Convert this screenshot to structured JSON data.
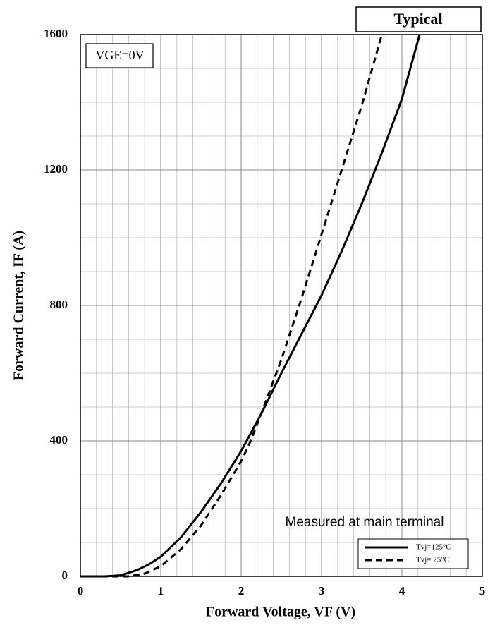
{
  "chart_data": {
    "type": "line",
    "title": "Typical",
    "x_label": "Forward Voltage, VF (V)",
    "y_label": "Forward Current, IF (A)",
    "annotations": [
      "VGE=0V",
      "Measured at main terminal"
    ],
    "xlim": [
      0,
      5
    ],
    "xticks": [
      0,
      1,
      2,
      3,
      4,
      5
    ],
    "ylim": [
      0,
      1600
    ],
    "yticks": [
      0,
      400,
      800,
      1200,
      1600
    ],
    "xminorticks": [
      0.2,
      0.4,
      0.6,
      0.8,
      1.2,
      1.4,
      1.6,
      1.8,
      2.2,
      2.4,
      2.6,
      2.8,
      3.2,
      3.4,
      3.6,
      3.8,
      4.2,
      4.4,
      4.6,
      4.8
    ],
    "yminorticks": [
      100,
      200,
      300,
      500,
      600,
      700,
      900,
      1000,
      1100,
      1300,
      1400,
      1500
    ],
    "grid": true,
    "legend": "lower right",
    "series": [
      {
        "name": "Tvj=125°C",
        "color": "#000000",
        "dash": "solid",
        "x": [
          0,
          0.3,
          0.5,
          0.7,
          0.85,
          1.0,
          1.25,
          1.5,
          1.75,
          2.0,
          2.25,
          2.5,
          2.75,
          3.0,
          3.25,
          3.5,
          3.75,
          4.0,
          4.22
        ],
        "values": [
          0,
          0,
          3,
          18,
          35,
          58,
          115,
          190,
          275,
          370,
          480,
          600,
          715,
          830,
          960,
          1100,
          1250,
          1410,
          1600
        ]
      },
      {
        "name": "Tvj= 25°C",
        "color": "#000000",
        "dash": "dashed",
        "x": [
          0,
          0.6,
          0.8,
          1.0,
          1.25,
          1.5,
          1.75,
          2.0,
          2.1,
          2.25,
          2.5,
          2.75,
          3.0,
          3.25,
          3.5,
          3.75
        ],
        "values": [
          0,
          0,
          8,
          30,
          80,
          150,
          240,
          340,
          390,
          480,
          640,
          820,
          1010,
          1200,
          1390,
          1600
        ]
      }
    ]
  }
}
